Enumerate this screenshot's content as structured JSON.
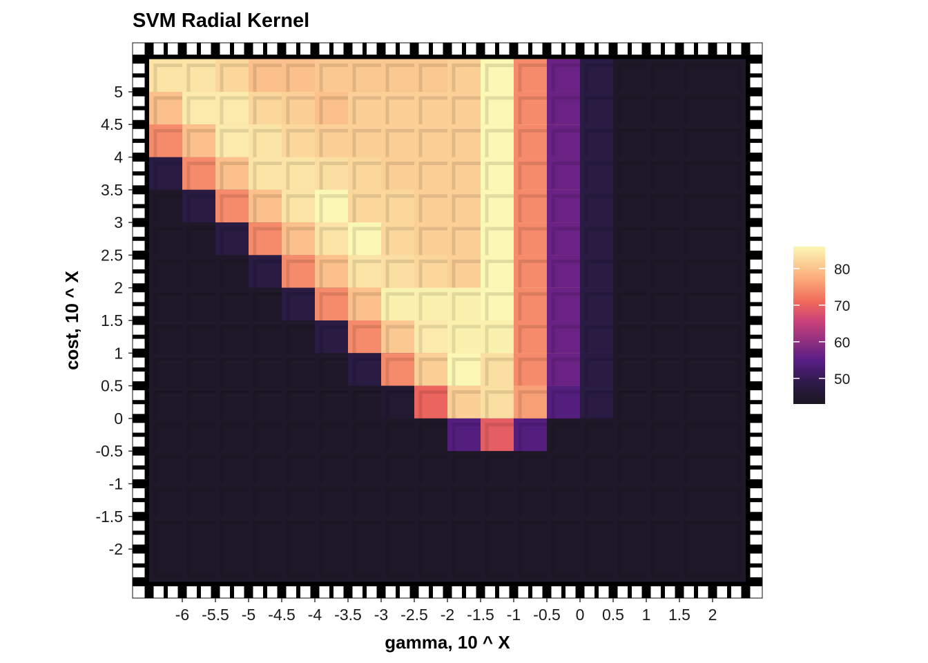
{
  "chart_data": {
    "type": "heatmap",
    "title": "SVM Radial Kernel",
    "xlabel": "gamma, 10 ^ X",
    "ylabel": "cost, 10 ^ X",
    "x": [
      -6,
      -5.5,
      -5,
      -4.5,
      -4,
      -3.5,
      -3,
      -2.5,
      -2,
      -1.5,
      -1,
      -0.5,
      0,
      0.5,
      1,
      1.5,
      2
    ],
    "y": [
      5,
      4.5,
      4,
      3.5,
      3,
      2.5,
      2,
      1.5,
      1,
      0.5,
      0,
      -0.5,
      -1,
      -1.5,
      -2
    ],
    "x_tick_labels": [
      "-6",
      "-5.5",
      "-5",
      "-4.5",
      "-4",
      "-3.5",
      "-3",
      "-2.5",
      "-2",
      "-1.5",
      "-1",
      "-0.5",
      "0",
      "0.5",
      "1",
      "1.5",
      "2"
    ],
    "y_tick_labels": [
      "5",
      "4.5",
      "4",
      "3.5",
      "3",
      "2.5",
      "2",
      "1.5",
      "1",
      "0.5",
      "0",
      "-0.5",
      "-1",
      "-1.5",
      "-2"
    ],
    "xlim": [
      -6.75,
      2.75
    ],
    "ylim": [
      -2.75,
      5.75
    ],
    "z_min": 43,
    "z_max": 86,
    "colorscale": "magma",
    "legend": {
      "position": "right",
      "ticks": [
        80,
        70,
        60,
        50
      ],
      "tick_labels": [
        "80",
        "70",
        "60",
        "50"
      ]
    },
    "values": [
      [
        83,
        83,
        81,
        78,
        78,
        79,
        79,
        79,
        79,
        80,
        86,
        72,
        55,
        47,
        44,
        44,
        44
      ],
      [
        78,
        84,
        84,
        81,
        80,
        78,
        80,
        80,
        80,
        80,
        86,
        72,
        55,
        47,
        44,
        44,
        44
      ],
      [
        72,
        78,
        84,
        83,
        81,
        80,
        80,
        80,
        80,
        80,
        86,
        72,
        55,
        47,
        44,
        44,
        44
      ],
      [
        47,
        72,
        78,
        83,
        83,
        82,
        81,
        80,
        80,
        80,
        86,
        72,
        55,
        47,
        44,
        44,
        44
      ],
      [
        44,
        47,
        72,
        78,
        83,
        86,
        81,
        81,
        80,
        80,
        86,
        72,
        55,
        47,
        44,
        44,
        44
      ],
      [
        44,
        44,
        47,
        72,
        78,
        83,
        86,
        81,
        80,
        80,
        86,
        72,
        55,
        47,
        44,
        44,
        44
      ],
      [
        44,
        44,
        44,
        47,
        72,
        78,
        83,
        82,
        81,
        80,
        86,
        72,
        55,
        47,
        44,
        44,
        44
      ],
      [
        44,
        44,
        44,
        44,
        47,
        72,
        78,
        85,
        85,
        85,
        86,
        72,
        55,
        47,
        44,
        44,
        44
      ],
      [
        44,
        44,
        44,
        44,
        44,
        47,
        72,
        79,
        84,
        85,
        85,
        72,
        55,
        47,
        44,
        44,
        44
      ],
      [
        44,
        44,
        44,
        44,
        44,
        44,
        47,
        72,
        80,
        86,
        82,
        72,
        55,
        47,
        44,
        44,
        44
      ],
      [
        44,
        44,
        44,
        44,
        44,
        44,
        44,
        45,
        68,
        80,
        82,
        74,
        53,
        47,
        44,
        44,
        44
      ],
      [
        44,
        44,
        44,
        44,
        44,
        44,
        44,
        44,
        44,
        53,
        67,
        53,
        44,
        44,
        44,
        44,
        44
      ],
      [
        44,
        44,
        44,
        44,
        44,
        44,
        44,
        44,
        44,
        44,
        44,
        44,
        44,
        44,
        44,
        44,
        44
      ],
      [
        44,
        44,
        44,
        44,
        44,
        44,
        44,
        44,
        44,
        44,
        44,
        44,
        44,
        44,
        44,
        44,
        44
      ],
      [
        44,
        44,
        44,
        44,
        44,
        44,
        44,
        44,
        44,
        44,
        44,
        44,
        44,
        44,
        44,
        44,
        44
      ]
    ]
  }
}
